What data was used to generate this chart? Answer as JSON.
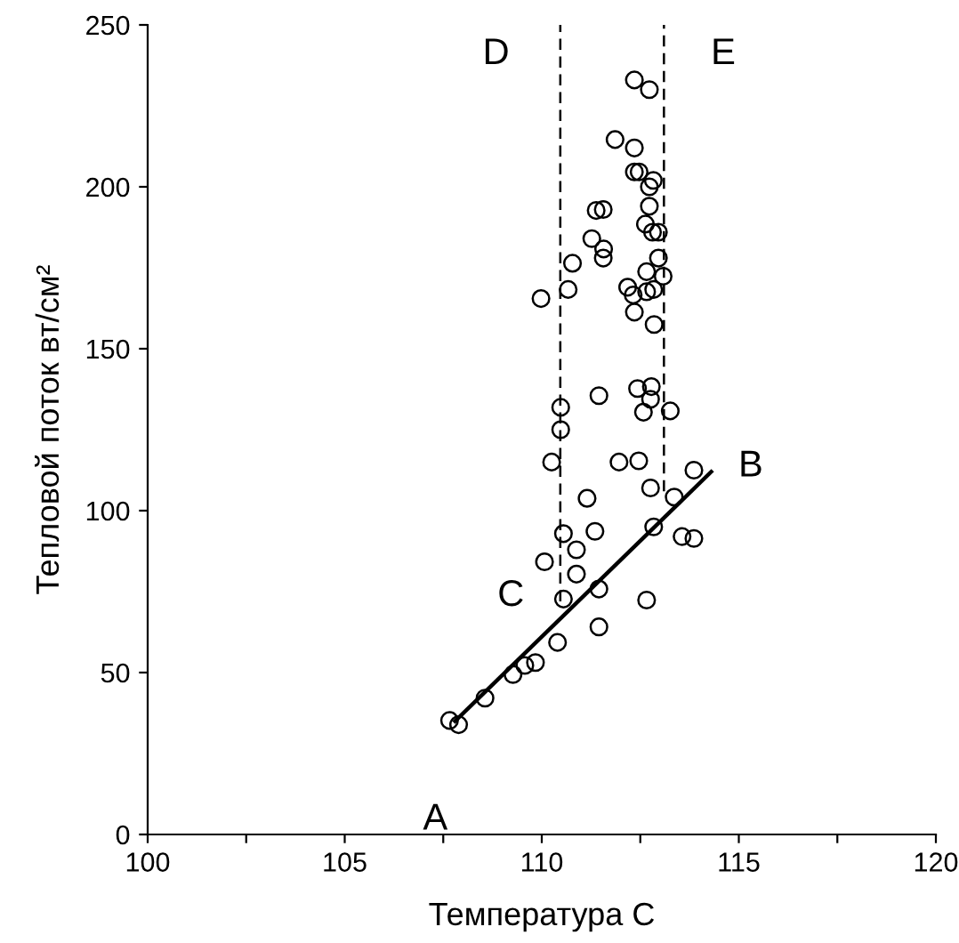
{
  "chart_data": {
    "type": "scatter",
    "xlabel": "Температура С",
    "ylabel": "Тепловой поток вт/см²",
    "xlim": [
      100,
      120
    ],
    "ylim": [
      0,
      250
    ],
    "xticks": [
      100,
      {
        "value": 102.5,
        "label": null
      },
      105,
      {
        "value": 107.5,
        "label": null
      },
      110,
      {
        "value": 112.5,
        "label": null
      },
      115,
      {
        "value": 117.5,
        "label": null
      },
      120
    ],
    "yticks": [
      0,
      50,
      100,
      150,
      200,
      250
    ],
    "grid": false,
    "legend": false,
    "marker": "circle",
    "series": [
      {
        "color": "#000000",
        "x": [
          112.35,
          112.73,
          111.86,
          112.35,
          112.35,
          112.47,
          112.83,
          112.73,
          112.73,
          111.38,
          111.56,
          112.63,
          112.81,
          112.96,
          111.27,
          111.57,
          111.56,
          112.96,
          110.78,
          112.66,
          113.08,
          112.18,
          112.32,
          112.66,
          112.84,
          110.67,
          109.98,
          112.35,
          112.85,
          112.43,
          112.78,
          112.76,
          112.58,
          113.26,
          111.45,
          110.48,
          110.48,
          110.25,
          111.96,
          112.46,
          113.86,
          112.76,
          113.36,
          111.15,
          110.55,
          111.35,
          112.84,
          113.56,
          113.86,
          110.88,
          110.07,
          110.88,
          111.45,
          110.55,
          112.66,
          110.4,
          111.45,
          109.84,
          109.57,
          109.27,
          108.56,
          107.66,
          107.89
        ],
        "values": [
          233,
          230,
          214.6,
          212,
          204.6,
          204.6,
          202,
          200,
          194,
          192.7,
          193,
          188.5,
          186,
          186,
          184,
          180.8,
          178,
          178,
          176.4,
          173.8,
          172.4,
          169,
          166.6,
          167.6,
          168.3,
          168.3,
          165.5,
          161.3,
          157.5,
          137.7,
          138.3,
          134.4,
          130.4,
          130.8,
          135.5,
          131.9,
          125,
          115,
          115,
          115.4,
          112.5,
          107,
          104.2,
          103.8,
          92.9,
          93.6,
          95,
          92,
          91.4,
          87.9,
          84.2,
          80.4,
          75.8,
          72.7,
          72.4,
          59.3,
          64.1,
          53.1,
          52.2,
          49.4,
          42.1,
          35.2,
          33.9
        ]
      },
      {
        "type": "line",
        "color": "#000000",
        "line_style": "solid",
        "marker": "none",
        "x": [
          107.8,
          114.3
        ],
        "values": [
          35,
          112
        ]
      },
      {
        "type": "line",
        "color": "#000000",
        "line_style": "dashed",
        "marker": "none",
        "x": [
          110.47,
          110.47
        ],
        "values": [
          72,
          250
        ]
      },
      {
        "type": "line",
        "color": "#000000",
        "line_style": "dashed",
        "marker": "none",
        "x": [
          113.1,
          113.1
        ],
        "values": [
          106,
          250
        ]
      }
    ],
    "annotations": [
      {
        "text": "A",
        "x": 107.8,
        "y": 35
      },
      {
        "text": "B",
        "x": 114.3,
        "y": 112
      },
      {
        "text": "C",
        "x": 110.47,
        "y": 72
      },
      {
        "text": "D",
        "x": 110.47,
        "y": 250
      },
      {
        "text": "E",
        "x": 113.1,
        "y": 250
      }
    ]
  }
}
